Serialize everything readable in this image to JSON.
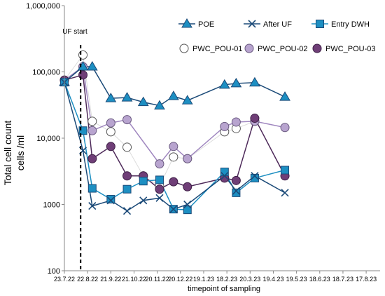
{
  "chart_data": {
    "type": "line",
    "title": "",
    "xlabel": "timepoint of sampling",
    "ylabel_lines": [
      "Total cell count",
      "cells /ml"
    ],
    "y_scale": "log",
    "ylim": [
      100,
      1000000
    ],
    "y_ticks": [
      {
        "value": 100,
        "label": "100"
      },
      {
        "value": 1000,
        "label": "1000"
      },
      {
        "value": 10000,
        "label": "10,000"
      },
      {
        "value": 100000,
        "label": "100,000"
      },
      {
        "value": 1000000,
        "label": "1,000,000"
      }
    ],
    "x_ticks": [
      {
        "x": 0,
        "label": "23.7.22"
      },
      {
        "x": 1,
        "label": "22.8.22"
      },
      {
        "x": 2,
        "label": "21.9.22"
      },
      {
        "x": 3,
        "label": "21.10.22"
      },
      {
        "x": 4,
        "label": "20.11.22"
      },
      {
        "x": 5,
        "label": "20.12.22"
      },
      {
        "x": 6,
        "label": "19.1.23"
      },
      {
        "x": 7,
        "label": "18.2.23"
      },
      {
        "x": 8,
        "label": "20.3.23"
      },
      {
        "x": 9,
        "label": "19.4.23"
      },
      {
        "x": 10,
        "label": "19.5.23"
      },
      {
        "x": 11,
        "label": "18.6.23"
      },
      {
        "x": 12,
        "label": "18.7.23"
      },
      {
        "x": 13,
        "label": "17.8.23"
      }
    ],
    "xlim": [
      0,
      13.6
    ],
    "annotation": {
      "label": "UF start",
      "x": 0.7
    },
    "legend_position": "top-right",
    "series": [
      {
        "name": "POE",
        "marker": "triangle",
        "color": "#1d8fc2",
        "line_color": "#1b4a78",
        "points": [
          [
            0,
            70000
          ],
          [
            0.8,
            120000
          ],
          [
            1.2,
            120000
          ],
          [
            2,
            40000
          ],
          [
            2.7,
            41000
          ],
          [
            3.4,
            35000
          ],
          [
            4.1,
            31000
          ],
          [
            4.7,
            43000
          ],
          [
            5.3,
            37000
          ],
          [
            6.9,
            64000
          ],
          [
            7.4,
            67000
          ],
          [
            8.2,
            69000
          ],
          [
            9.5,
            42000
          ]
        ]
      },
      {
        "name": "After UF",
        "marker": "x",
        "color": "#1b4a78",
        "line_color": "#1b4a78",
        "points": [
          [
            0,
            70000
          ],
          [
            0.8,
            6500
          ],
          [
            1.2,
            950
          ],
          [
            2,
            1150
          ],
          [
            2.7,
            800
          ],
          [
            3.4,
            1150
          ],
          [
            4.1,
            1250
          ],
          [
            4.7,
            850
          ],
          [
            5.3,
            1000
          ],
          [
            6.9,
            2700
          ],
          [
            7.4,
            1600
          ],
          [
            8.2,
            2700
          ],
          [
            9.5,
            1500
          ]
        ]
      },
      {
        "name": "Entry DWH",
        "marker": "square",
        "color": "#1d8fc2",
        "line_color": "#1d8fc2",
        "points": [
          [
            0,
            70000
          ],
          [
            0.8,
            13000
          ],
          [
            1.2,
            1750
          ],
          [
            2,
            1200
          ],
          [
            2.7,
            1700
          ],
          [
            3.4,
            2250
          ],
          [
            4.1,
            2350
          ],
          [
            4.7,
            850
          ],
          [
            5.3,
            830
          ],
          [
            6.9,
            3100
          ],
          [
            7.4,
            1500
          ],
          [
            8.2,
            2500
          ],
          [
            9.5,
            3300
          ]
        ]
      },
      {
        "name": "PWC_POU-01",
        "marker": "circle-open",
        "color": "#555555",
        "line_color": "#dcdcdc",
        "points": [
          [
            0,
            75000
          ],
          [
            0.8,
            180000
          ],
          [
            1.2,
            18000
          ],
          [
            2,
            12500
          ],
          [
            2.7,
            7300
          ],
          [
            3.4,
            2700
          ],
          [
            4.1,
            1900
          ],
          [
            4.7,
            5200
          ],
          [
            5.3,
            4900
          ],
          [
            6.9,
            12500
          ],
          [
            7.4,
            14000
          ],
          [
            8.2,
            18000
          ]
        ]
      },
      {
        "name": "PWC_POU-02",
        "marker": "circle-lilac",
        "color": "#b8a4cf",
        "line_color": "#9f86bf",
        "points": [
          [
            0,
            75000
          ],
          [
            0.8,
            120000
          ],
          [
            1.2,
            13000
          ],
          [
            2,
            17000
          ],
          [
            2.7,
            19000
          ],
          [
            4.1,
            4100
          ],
          [
            4.7,
            7500
          ],
          [
            5.3,
            4900
          ],
          [
            6.9,
            15000
          ],
          [
            7.4,
            17500
          ],
          [
            8.2,
            18000
          ],
          [
            9.5,
            14500
          ]
        ]
      },
      {
        "name": "PWC_POU-03",
        "marker": "circle-purple",
        "color": "#6f3e77",
        "line_color": "#4e2a5a",
        "points": [
          [
            0,
            75000
          ],
          [
            0.8,
            90000
          ],
          [
            1.2,
            4900
          ],
          [
            2,
            7500
          ],
          [
            2.7,
            2700
          ],
          [
            3.4,
            2700
          ],
          [
            4.1,
            1700
          ],
          [
            4.7,
            2200
          ],
          [
            5.3,
            1850
          ],
          [
            6.9,
            2500
          ],
          [
            7.4,
            2300
          ],
          [
            8.2,
            20000
          ],
          [
            9.5,
            2700
          ]
        ]
      }
    ]
  }
}
